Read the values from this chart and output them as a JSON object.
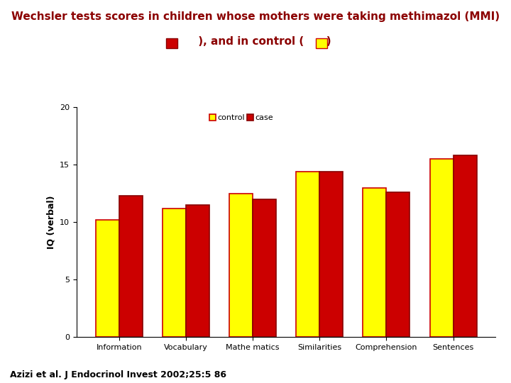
{
  "title_line1": "Wechsler tests scores in children whose mothers were taking methimazol (MMI)",
  "title_line2_left": " ), and in control ( ",
  "categories": [
    "Information",
    "Vocabulary",
    "Mathe matics",
    "Similarities",
    "Comprehension",
    "Sentences"
  ],
  "control_values": [
    10.2,
    11.2,
    12.5,
    14.4,
    13.0,
    15.5
  ],
  "case_values": [
    12.3,
    11.5,
    12.0,
    14.4,
    12.6,
    15.8
  ],
  "control_color": "#FFFF00",
  "case_color": "#CC0000",
  "control_edge": "#CC0000",
  "case_edge": "#880000",
  "ylabel": "IQ (verbal)",
  "ylim": [
    0,
    20
  ],
  "yticks": [
    0,
    5,
    10,
    15,
    20
  ],
  "legend_labels": [
    "control",
    "case"
  ],
  "bar_width": 0.35,
  "title_color": "#8B0000",
  "title_fontsize": 11,
  "axis_fontsize": 9,
  "tick_fontsize": 8,
  "legend_fontsize": 8,
  "footnote": "Azizi et al. J Endocrinol Invest 2002;25:5 86",
  "background_color": "#FFFFFF"
}
